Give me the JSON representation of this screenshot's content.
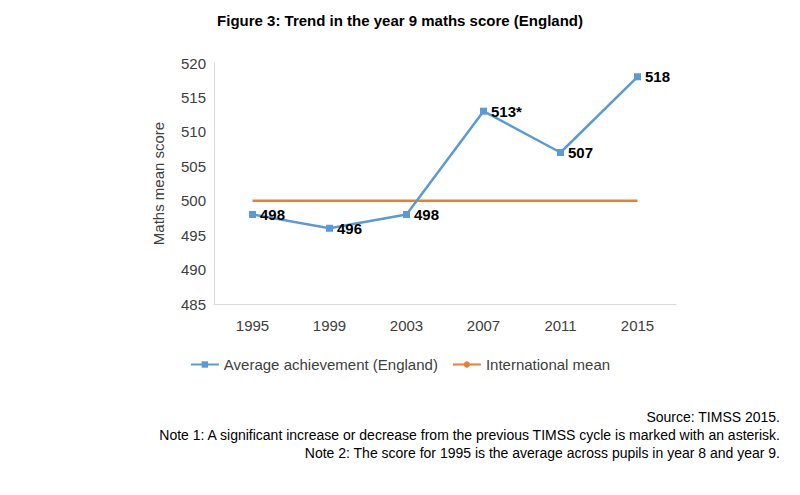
{
  "chart_data": {
    "type": "line",
    "title": "Figure 3: Trend in the year 9 maths score (England)",
    "y_label": "Maths mean score",
    "categories": [
      "1995",
      "1999",
      "2003",
      "2007",
      "2011",
      "2015"
    ],
    "series": [
      {
        "name": "Average achievement (England)",
        "color": "#5b9bd5",
        "marker": "square",
        "line_style": "solid",
        "data_labels": true,
        "values": [
          498,
          496,
          498,
          513,
          507,
          518
        ],
        "value_labels": [
          "498",
          "496",
          "498",
          "513*",
          "507",
          "518"
        ]
      },
      {
        "name": "International mean",
        "color": "#ed7d31",
        "marker": "none",
        "line_style": "solid",
        "data_labels": false,
        "values": [
          500,
          500,
          500,
          500,
          500,
          500
        ]
      }
    ],
    "ylim": [
      485,
      520
    ],
    "yticks": [
      485,
      490,
      495,
      500,
      505,
      510,
      515,
      520
    ],
    "grid": false,
    "legend": "bottom",
    "annotations": [
      "Source: TIMSS 2015.",
      "Note 1: A significant increase or decrease from the previous TIMSS cycle is marked with an asterisk.",
      "Note 2: The score for 1995 is the average across pupils in year 8 and year 9."
    ]
  }
}
